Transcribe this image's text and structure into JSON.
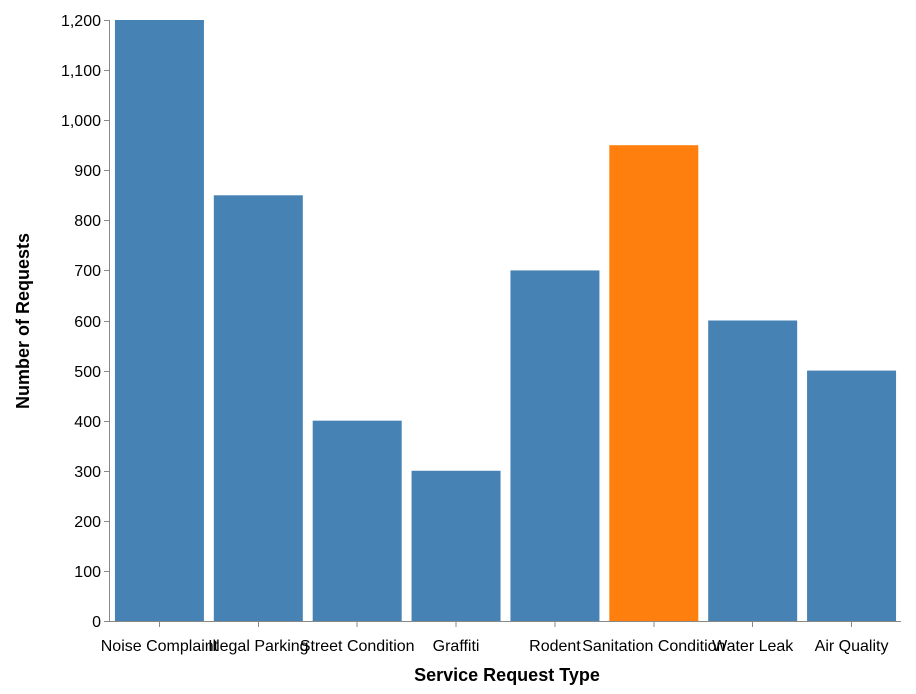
{
  "chart_data": {
    "type": "bar",
    "categories": [
      "Noise Complaint",
      "Illegal Parking",
      "Street Condition",
      "Graffiti",
      "Rodent",
      "Sanitation Condition",
      "Water Leak",
      "Air Quality"
    ],
    "values": [
      1200,
      850,
      400,
      300,
      700,
      950,
      600,
      500
    ],
    "xlabel": "Service Request Type",
    "ylabel": "Number of Requests",
    "ylim": [
      0,
      1200
    ],
    "yticks": [
      0,
      100,
      200,
      300,
      400,
      500,
      600,
      700,
      800,
      900,
      1000,
      1100,
      1200
    ],
    "ytick_labels": [
      "0",
      "100",
      "200",
      "300",
      "400",
      "500",
      "600",
      "700",
      "800",
      "900",
      "1,000",
      "1,100",
      "1,200"
    ],
    "grid": false,
    "highlight_category": "Sanitation Condition",
    "colors": {
      "bar": "#4682b4",
      "highlight": "#ff7f0e"
    }
  }
}
